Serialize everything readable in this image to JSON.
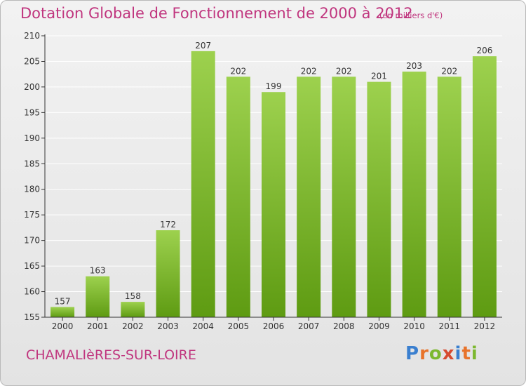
{
  "title": "Dotation Globale de Fonctionnement de 2000 à 2012",
  "unit_note": "(en milliers d'€)",
  "commune": "CHAMALIèRES-SUR-LOIRE",
  "logo": {
    "text": "Proxiti",
    "letters": [
      {
        "ch": "P",
        "color": "#3a7fcf"
      },
      {
        "ch": "r",
        "color": "#e8732a"
      },
      {
        "ch": "o",
        "color": "#7cb82f"
      },
      {
        "ch": "x",
        "color": "#d64a2f"
      },
      {
        "ch": "i",
        "color": "#3a7fcf"
      },
      {
        "ch": "t",
        "color": "#e8732a"
      },
      {
        "ch": "i",
        "color": "#7cb82f"
      }
    ]
  },
  "colors": {
    "accent": "#c0357e",
    "bar_top": "#9dd14e",
    "bar_bottom": "#5e9b12",
    "axis": "#333333"
  },
  "chart_data": {
    "type": "bar",
    "categories": [
      "2000",
      "2001",
      "2002",
      "2003",
      "2004",
      "2005",
      "2006",
      "2007",
      "2008",
      "2009",
      "2010",
      "2011",
      "2012"
    ],
    "values": [
      157,
      163,
      158,
      172,
      207,
      202,
      199,
      202,
      202,
      201,
      203,
      202,
      206
    ],
    "ylim": [
      155,
      210
    ],
    "yticks": [
      155,
      160,
      165,
      170,
      175,
      180,
      185,
      190,
      195,
      200,
      205,
      210
    ],
    "grid": true,
    "legend": "none"
  }
}
